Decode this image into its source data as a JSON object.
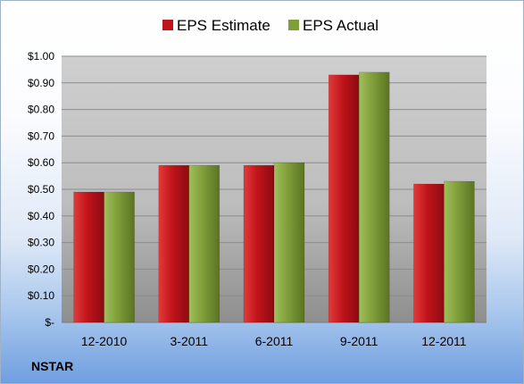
{
  "company": "NSTAR",
  "colors": {
    "estimate": "#c0141b",
    "actual": "#7f9e3a"
  },
  "chart_data": {
    "type": "bar",
    "title": "",
    "xlabel": "",
    "ylabel": "",
    "categories": [
      "12-2010",
      "3-2011",
      "6-2011",
      "9-2011",
      "12-2011"
    ],
    "series": [
      {
        "name": "EPS Estimate",
        "values": [
          0.49,
          0.59,
          0.59,
          0.93,
          0.52
        ]
      },
      {
        "name": "EPS Actual",
        "values": [
          0.49,
          0.59,
          0.6,
          0.94,
          0.53
        ]
      }
    ],
    "ylim": [
      0,
      1.0
    ],
    "y_ticks": [
      0,
      0.1,
      0.2,
      0.3,
      0.4,
      0.5,
      0.6,
      0.7,
      0.8,
      0.9,
      1.0
    ],
    "y_tick_labels": [
      "$-",
      "$0.10",
      "$0.20",
      "$0.30",
      "$0.40",
      "$0.50",
      "$0.60",
      "$0.70",
      "$0.80",
      "$0.90",
      "$1.00"
    ],
    "grid": true,
    "legend_position": "top"
  }
}
